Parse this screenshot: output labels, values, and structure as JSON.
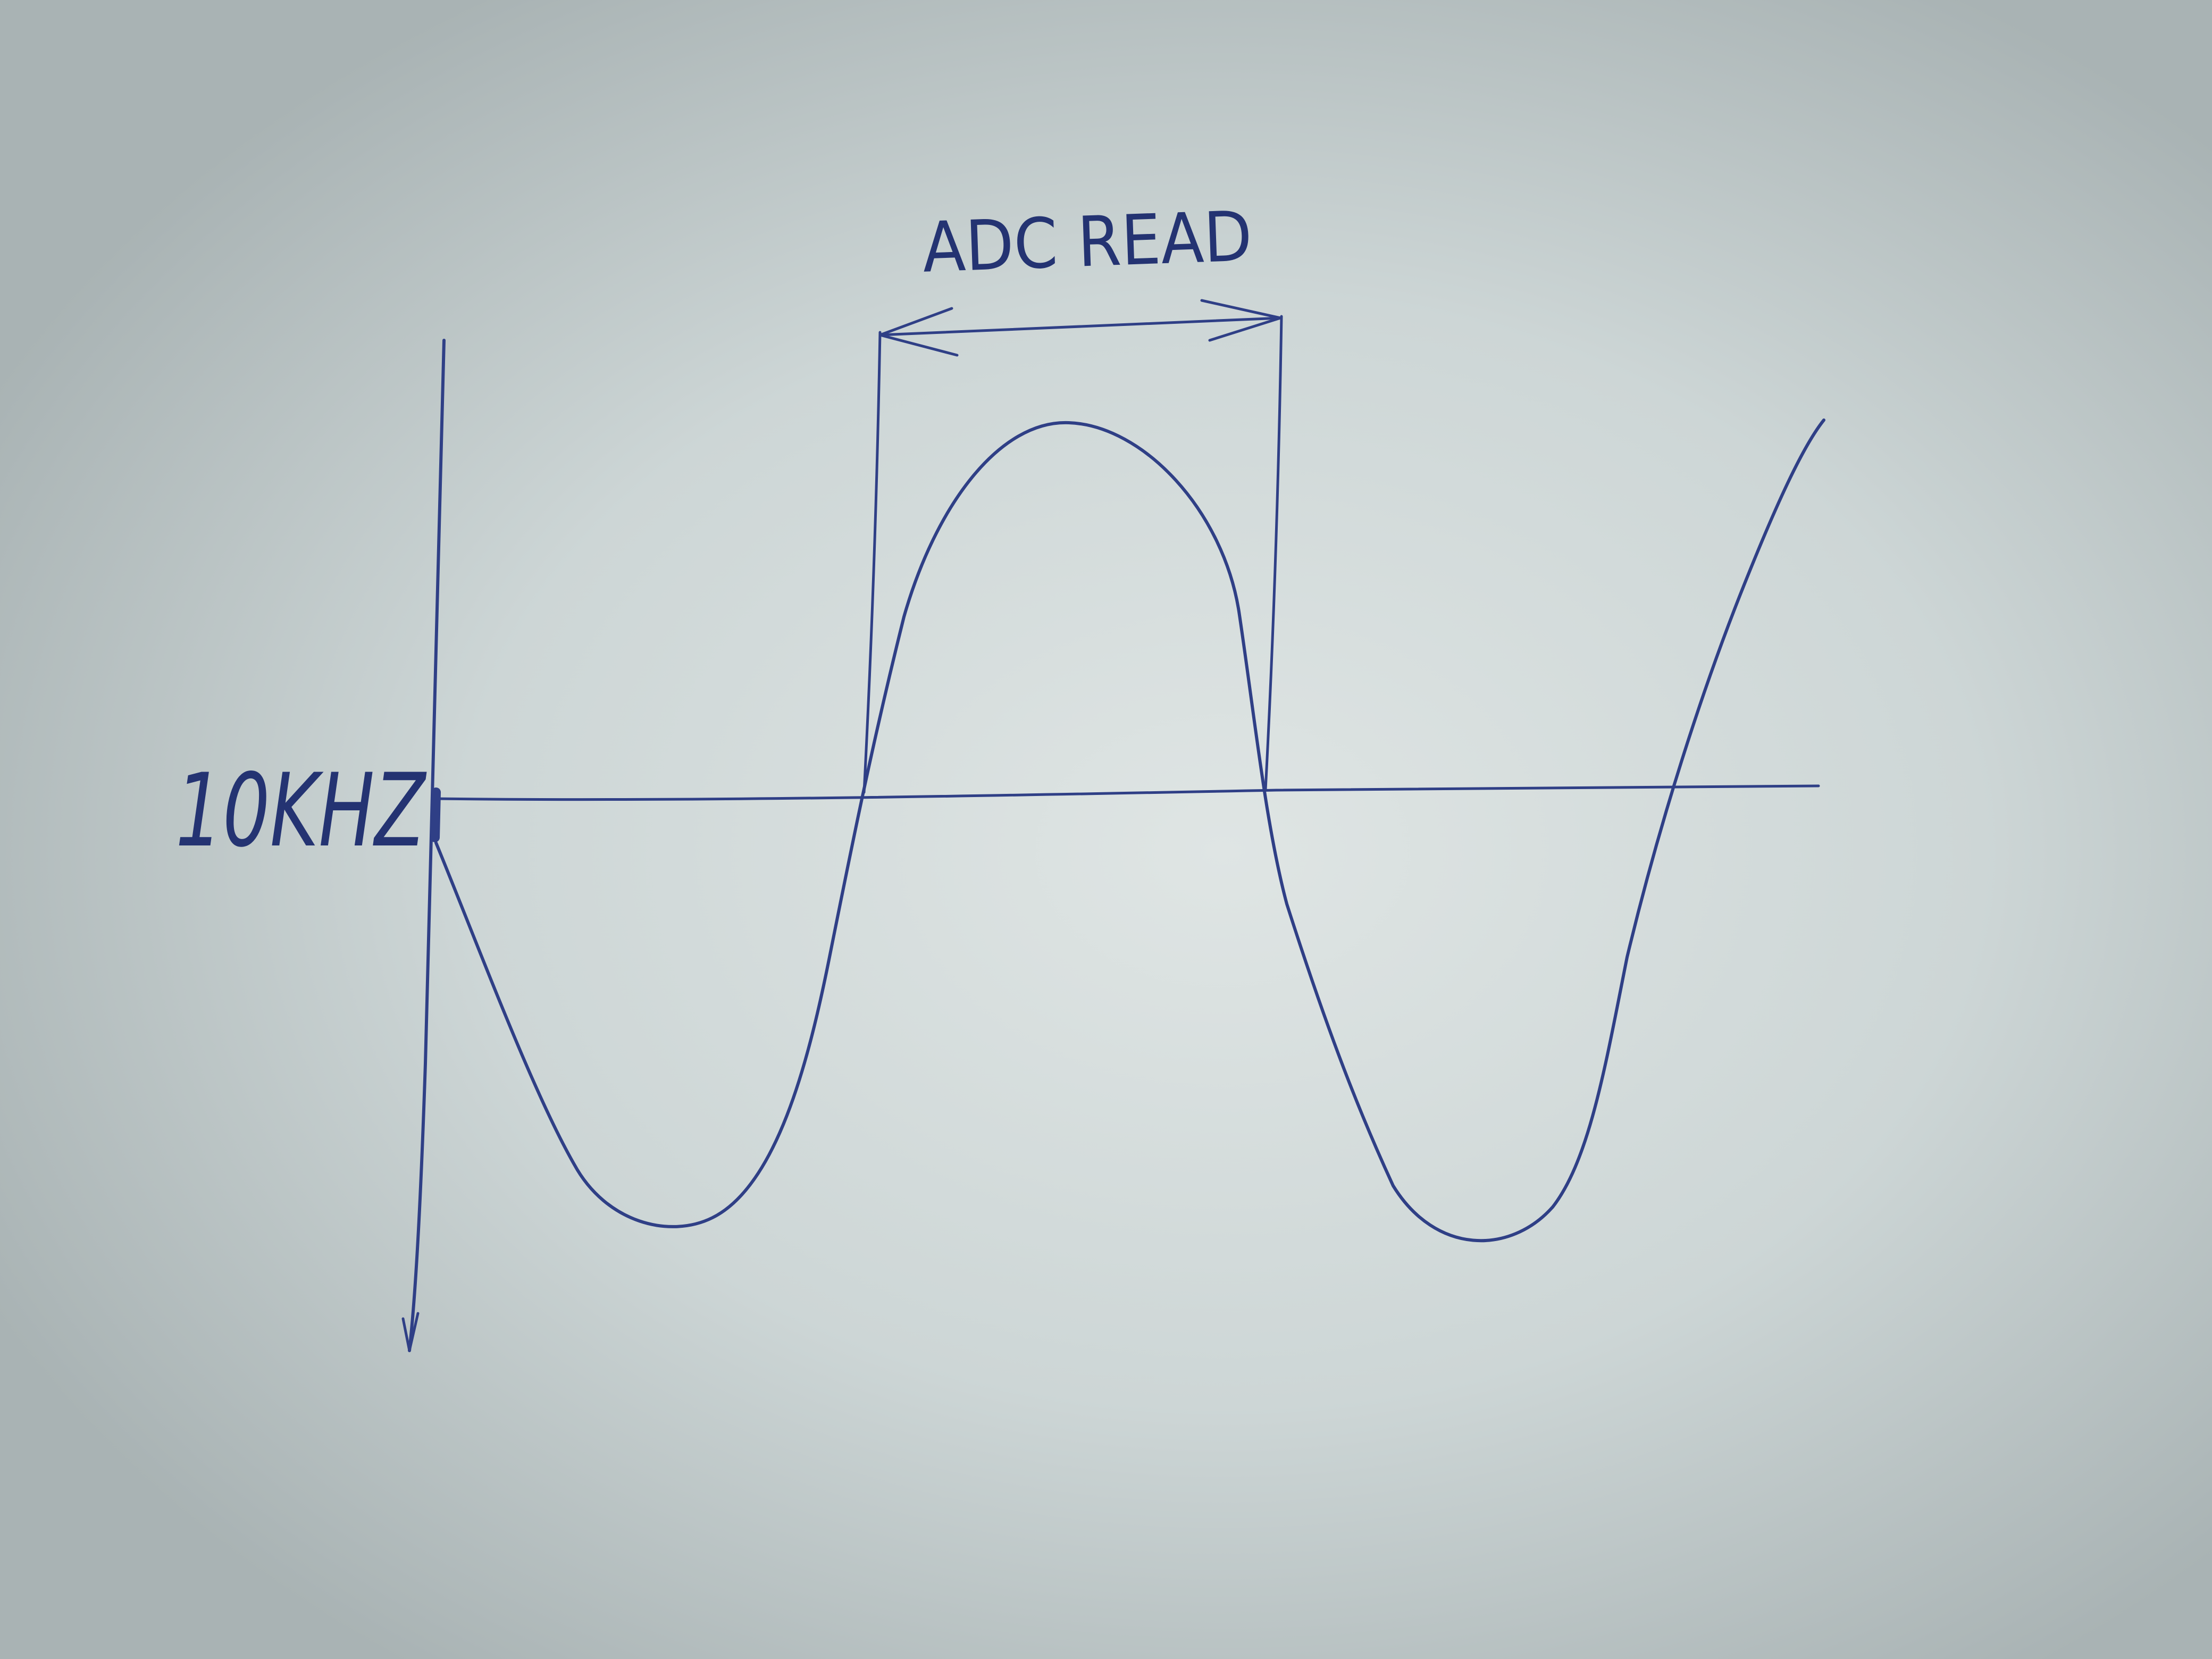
{
  "diagram": {
    "title": "",
    "frequency_label": "10KHZ",
    "window_label": "ADC READ",
    "ink_color": "#2f3f86"
  }
}
